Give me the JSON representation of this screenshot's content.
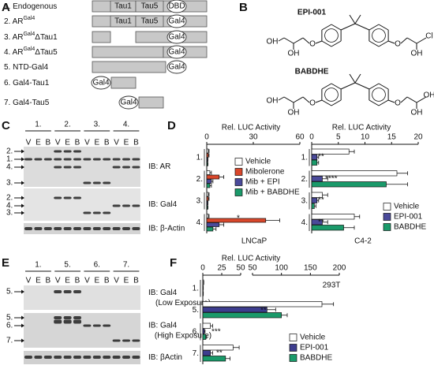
{
  "panels": {
    "a": {
      "letter": "A",
      "constructs": [
        {
          "label": "1. Endogenous"
        },
        {
          "label": "2. AR",
          "sup": "Gal4"
        },
        {
          "label": "3. AR",
          "sup": "Gal4",
          "suffix": "ΔTau1"
        },
        {
          "label": "4. AR",
          "sup": "Gal4",
          "suffix": "ΔTau5"
        },
        {
          "label": "5. NTD-Gal4"
        },
        {
          "label": "6. Gal4-Tau1"
        },
        {
          "label": "7. Gal4-Tau5"
        }
      ],
      "domains": {
        "tau1": "Tau1",
        "tau5": "Tau5",
        "dbd": "DBD",
        "gal4": "Gal4"
      }
    },
    "b": {
      "letter": "B",
      "structures": [
        {
          "name": "EPI-001",
          "atoms": [
            "OH",
            "OH",
            "O",
            "O",
            "OH",
            "Cl"
          ]
        },
        {
          "name": "BABDHE",
          "atoms": [
            "OH",
            "OH",
            "O",
            "O",
            "OH",
            "OH"
          ]
        }
      ]
    },
    "c": {
      "letter": "C",
      "groups": [
        "1.",
        "2.",
        "3.",
        "4."
      ],
      "lanes": [
        "V",
        "E",
        "B"
      ],
      "blots": [
        {
          "label": "IB: AR",
          "markers": [
            "2.",
            "1.",
            "4.",
            "3."
          ]
        },
        {
          "label": "IB: Gal4",
          "markers": [
            "2.",
            "4.",
            "3."
          ]
        },
        {
          "label": "IB: β-Actin",
          "markers": []
        }
      ]
    },
    "d": {
      "letter": "D",
      "charts": [
        {
          "type": "bar",
          "orientation": "horizontal",
          "title": "Rel. LUC Activity",
          "cell_line": "LNCaP",
          "categories": [
            "1.",
            "2.",
            "3.",
            "4."
          ],
          "series": [
            {
              "name": "Vehicle",
              "color": "#ffffff",
              "values": [
                1,
                2,
                1,
                1
              ],
              "errors": [
                0.5,
                1,
                0.5,
                0.5
              ]
            },
            {
              "name": "Mibolerone",
              "color": "#d9472b",
              "values": [
                1,
                8,
                1,
                38
              ],
              "errors": [
                0.5,
                3,
                0.5,
                9
              ]
            },
            {
              "name": "Mib + EPI",
              "color": "#4a4a9a",
              "values": [
                0.5,
                3,
                0.5,
                8
              ],
              "errors": [
                0.3,
                1,
                0.3,
                3
              ]
            },
            {
              "name": "Mib + BABDHE",
              "color": "#1a9a6a",
              "values": [
                0.5,
                2,
                0.5,
                4
              ],
              "errors": [
                0.3,
                1,
                0.3,
                2
              ]
            }
          ],
          "xlim": [
            0,
            60
          ],
          "xticks": [
            0,
            30,
            60
          ],
          "annotations": [
            "*"
          ]
        },
        {
          "type": "bar",
          "orientation": "horizontal",
          "title": "Rel. LUC Activity",
          "cell_line": "C4-2",
          "categories": [
            "1.",
            "2.",
            "3.",
            "4."
          ],
          "series": [
            {
              "name": "Vehicle",
              "color": "#ffffff",
              "values": [
                7,
                16,
                2,
                8
              ],
              "errors": [
                1,
                2,
                1,
                1
              ]
            },
            {
              "name": "EPI-001",
              "color": "#4a4a9a",
              "values": [
                1,
                2,
                1,
                2
              ],
              "errors": [
                0.3,
                1,
                0.3,
                1
              ]
            },
            {
              "name": "BABDHE",
              "color": "#1a9a6a",
              "values": [
                1,
                14,
                0.5,
                6
              ],
              "errors": [
                0.3,
                4,
                0.3,
                2
              ]
            }
          ],
          "xlim": [
            0,
            20
          ],
          "xticks": [
            0,
            5,
            10,
            15,
            20
          ],
          "annotations": [
            "**",
            "****",
            "**",
            "**"
          ]
        }
      ]
    },
    "e": {
      "letter": "E",
      "groups": [
        "1.",
        "5.",
        "6.",
        "7."
      ],
      "lanes": [
        "V",
        "E",
        "B"
      ],
      "blots": [
        {
          "label": "IB: Gal4",
          "note": "(Low Exposure)",
          "markers": [
            "5."
          ]
        },
        {
          "label": "IB: Gal4",
          "note": "(High Exposure)",
          "markers": [
            "5.",
            "6.",
            "7."
          ]
        },
        {
          "label": "IB: βActin",
          "markers": []
        }
      ]
    },
    "f": {
      "letter": "F",
      "chart": {
        "type": "bar",
        "orientation": "horizontal",
        "title": "Rel. LUC Activity",
        "cell_line": "293T",
        "categories": [
          "1.",
          "5.",
          "6.",
          "7."
        ],
        "series": [
          {
            "name": "Vehicle",
            "color": "#ffffff",
            "values": [
              1,
              170,
              10,
              40
            ],
            "errors": [
              0.3,
              20,
              3,
              8
            ]
          },
          {
            "name": "EPI-001",
            "color": "#3d3d8f",
            "values": [
              0.5,
              75,
              2,
              10
            ],
            "errors": [
              0.2,
              15,
              1,
              3
            ]
          },
          {
            "name": "BABDHE",
            "color": "#1a9a6a",
            "values": [
              0.5,
              100,
              4,
              30
            ],
            "errors": [
              0.2,
              10,
              1,
              6
            ]
          }
        ],
        "segments": [
          {
            "xlim": [
              0,
              50
            ],
            "xticks": [
              0,
              25,
              50
            ]
          },
          {
            "xlim": [
              50,
              200
            ],
            "xticks": [
              50,
              100,
              150,
              200
            ]
          }
        ],
        "annotations": [
          "**",
          "***",
          "**"
        ]
      }
    }
  }
}
